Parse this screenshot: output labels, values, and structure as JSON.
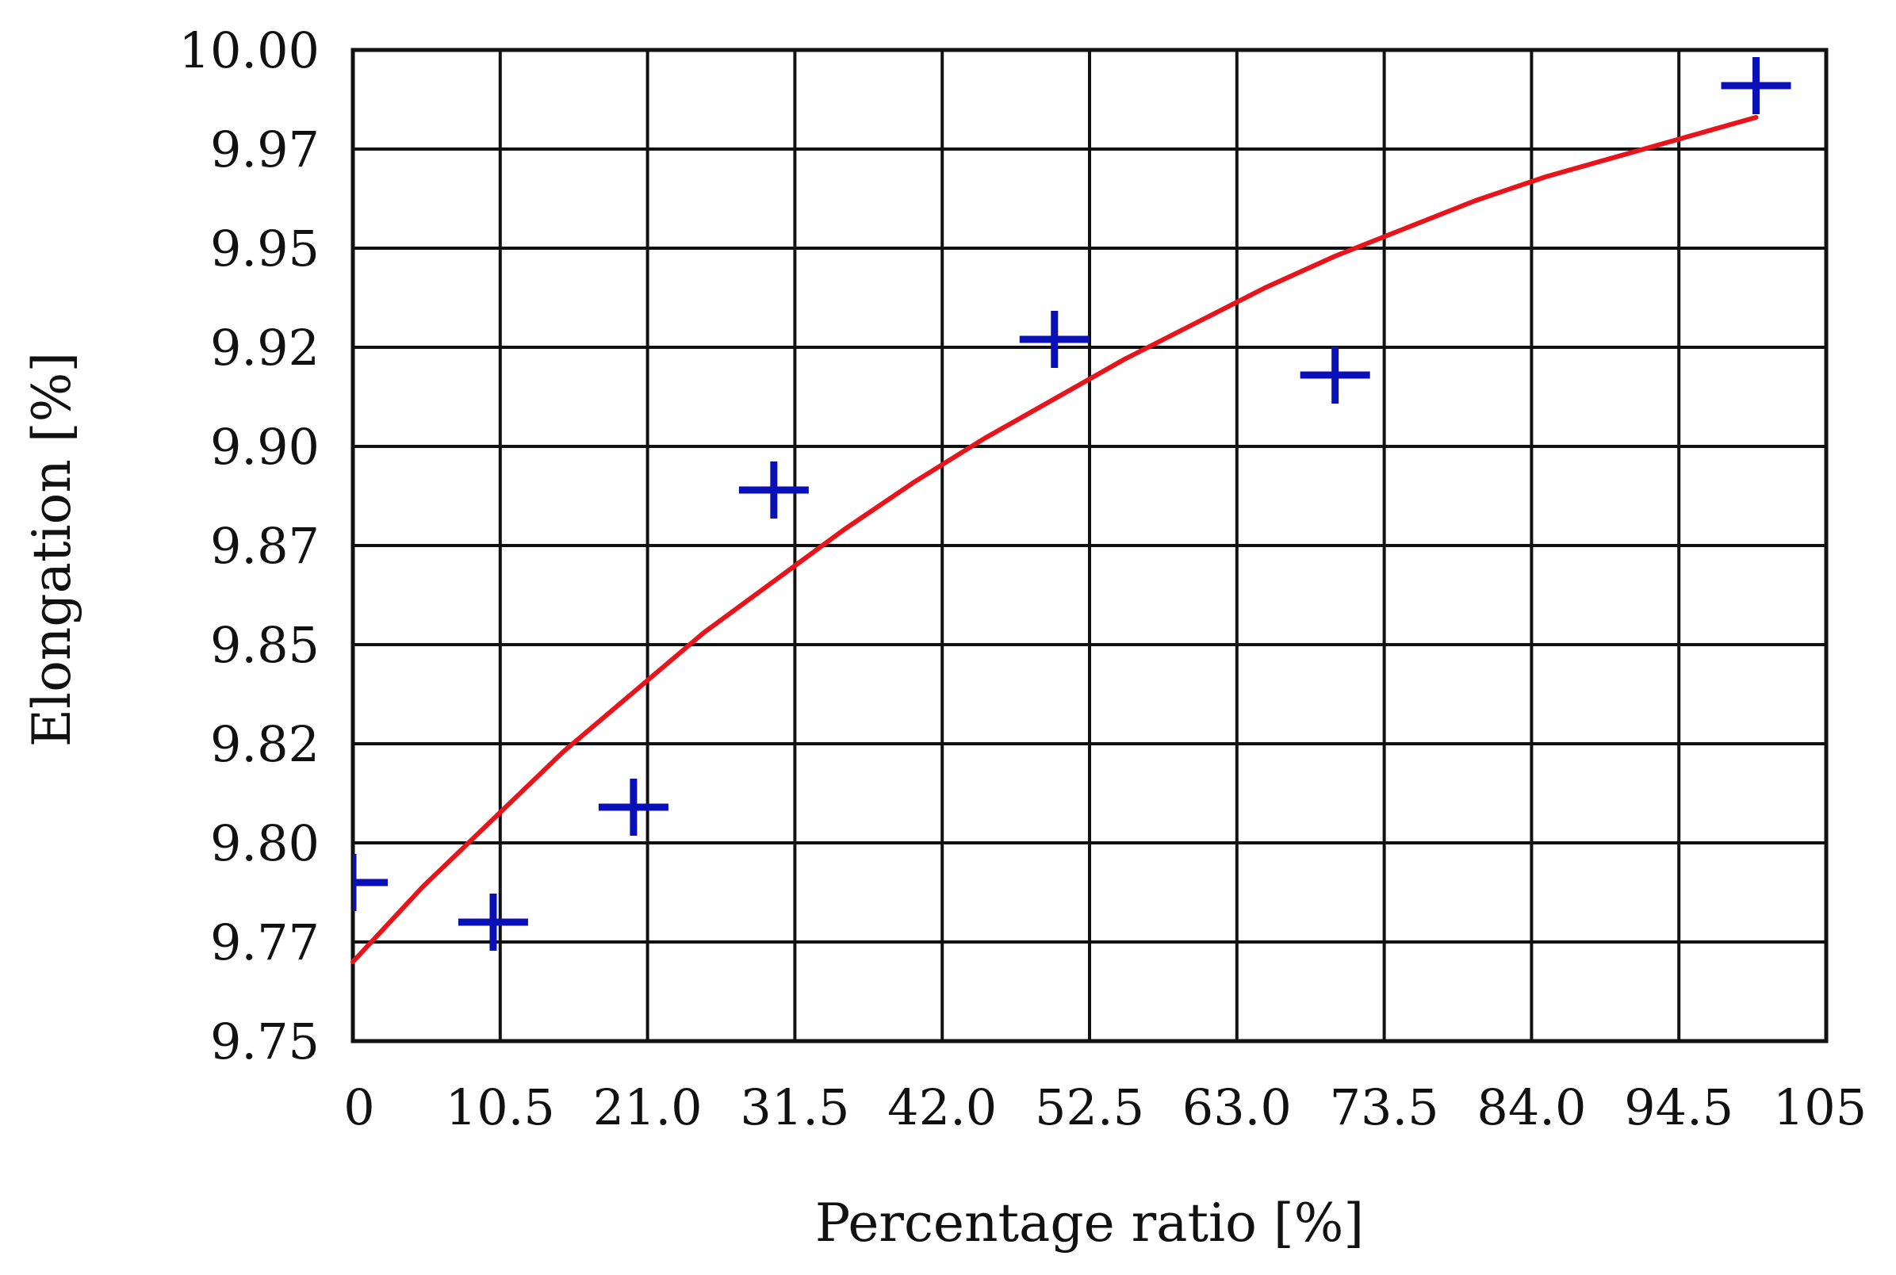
{
  "chart_data": {
    "type": "scatter",
    "title": "",
    "xlabel": "Percentage ratio [%]",
    "ylabel": "Elongation [%]",
    "xlim": [
      0,
      105
    ],
    "ylim": [
      9.75,
      10.0
    ],
    "x_ticks": [
      "0",
      "10.5",
      "21.0",
      "31.5",
      "42.0",
      "52.5",
      "63.0",
      "73.5",
      "84.0",
      "94.5",
      "105"
    ],
    "y_ticks": [
      "9.75",
      "9.77",
      "9.80",
      "9.82",
      "9.85",
      "9.87",
      "9.90",
      "9.92",
      "9.95",
      "9.97",
      "10.00"
    ],
    "grid": true,
    "legend": "none",
    "series": [
      {
        "kind": "points",
        "marker": "plus",
        "color": "#0a10b8",
        "x": [
          0,
          10,
          20,
          30,
          50,
          70,
          100
        ],
        "y": [
          9.79,
          9.78,
          9.809,
          9.889,
          9.927,
          9.918,
          9.991
        ]
      },
      {
        "kind": "fit-line",
        "color": "#e8141c",
        "x": [
          0,
          5,
          10,
          15,
          20,
          25,
          30,
          35,
          40,
          45,
          50,
          55,
          60,
          65,
          70,
          75,
          80,
          85,
          90,
          95,
          100
        ],
        "y": [
          9.77,
          9.789,
          9.806,
          9.823,
          9.838,
          9.853,
          9.866,
          9.879,
          9.891,
          9.902,
          9.912,
          9.922,
          9.931,
          9.94,
          9.948,
          9.955,
          9.962,
          9.968,
          9.973,
          9.978,
          9.983
        ]
      }
    ]
  }
}
